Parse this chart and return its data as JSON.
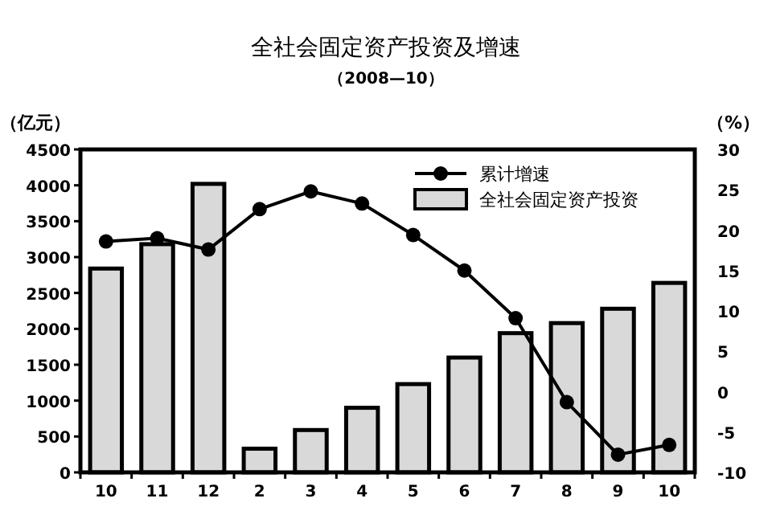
{
  "chart_data": {
    "type": "bar",
    "title": "全社会固定资产投资及增速",
    "subtitle": "（2008—10）",
    "ylabel": "（亿元）",
    "y2label": "（%）",
    "categories": [
      "10",
      "11",
      "12",
      "2",
      "3",
      "4",
      "5",
      "6",
      "7",
      "8",
      "9",
      "10"
    ],
    "series": [
      {
        "name": "全社会固定资产投资",
        "color": "#d9d9d9",
        "values": [
          2840,
          3180,
          4020,
          330,
          590,
          900,
          1230,
          1600,
          1940,
          2080,
          2280,
          2640
        ]
      },
      {
        "name": "累计增速",
        "type": "line",
        "axis": "y2",
        "color": "#000000",
        "marker": "circle",
        "values": [
          18.6,
          19.0,
          17.6,
          22.6,
          24.8,
          23.3,
          19.4,
          15.0,
          9.1,
          -1.3,
          -7.8,
          -6.6
        ]
      }
    ],
    "ylim": [
      0,
      4500
    ],
    "yticks": [
      0,
      500,
      1000,
      1500,
      2000,
      2500,
      3000,
      3500,
      4000,
      4500
    ],
    "y2lim": [
      -10,
      30
    ],
    "y2ticks": [
      -10,
      -5,
      0,
      5,
      10,
      15,
      20,
      25,
      30
    ],
    "legend": "top right",
    "grid": false
  }
}
